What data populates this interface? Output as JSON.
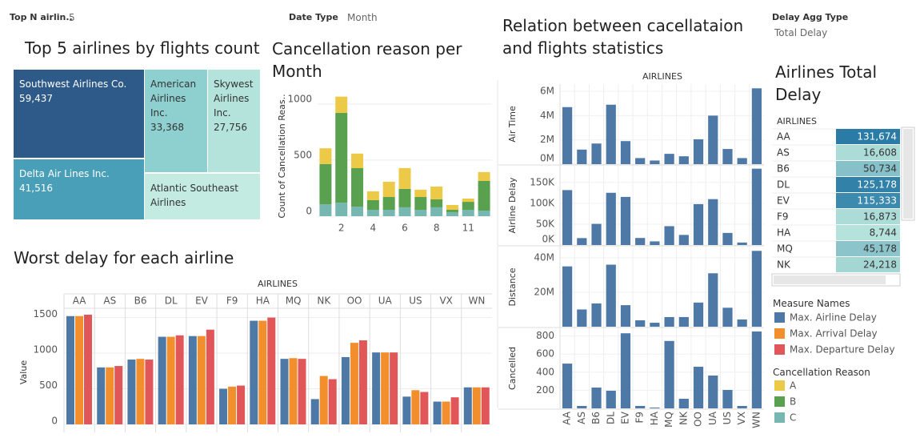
{
  "controls": [
    {
      "label": "Top N airlin..",
      "value": "5"
    },
    {
      "label": "Date Type",
      "value": "Month"
    },
    {
      "label": "Delay Agg Type",
      "value": "Total Delay"
    }
  ],
  "chart_data": [
    {
      "type": "treemap",
      "title": "Top 5 airlines by flights count",
      "categories": [
        "Southwest Airlines Co.",
        "Delta Air Lines Inc.",
        "American Airlines Inc.",
        "Skywest Airlines Inc.",
        "Atlantic Southeast Airlines"
      ],
      "values": [
        59437,
        41516,
        33368,
        27756,
        27400
      ],
      "value_labels": [
        "59,437",
        "41,516",
        "33,368",
        "27,756",
        null
      ],
      "colors": [
        "#2d5a88",
        "#4a9fb8",
        "#8ecfd0",
        "#b3e3da",
        "#c4ebe2"
      ]
    },
    {
      "type": "stacked_bar",
      "title": "Cancellation reason per Month",
      "y_label": "Count of Cancellation Reas..",
      "categories": [
        null,
        "2",
        null,
        "4",
        null,
        "6",
        null,
        "8",
        null,
        "11",
        null
      ],
      "series": [
        {
          "name": "C",
          "color": "#76b7b2",
          "values": [
            105,
            120,
            85,
            57,
            57,
            79,
            57,
            79,
            36,
            57,
            50
          ]
        },
        {
          "name": "B",
          "color": "#59a14f",
          "values": [
            360,
            800,
            343,
            86,
            114,
            164,
            114,
            71,
            21,
            71,
            264
          ]
        },
        {
          "name": "A",
          "color": "#edc948",
          "values": [
            140,
            145,
            130,
            78,
            136,
            186,
            65,
            114,
            43,
            29,
            79
          ]
        }
      ],
      "ylim": [
        0,
        1070
      ],
      "yticks": [
        0,
        500,
        1000
      ],
      "grid": true,
      "legend_title": "Cancellation Reason"
    },
    {
      "type": "grouped_bar",
      "title": "Worst delay for each airline",
      "x_header": "AIRLINES",
      "y_label": "Value",
      "categories": [
        "AA",
        "AS",
        "B6",
        "DL",
        "EV",
        "F9",
        "HA",
        "MQ",
        "NK",
        "OO",
        "UA",
        "US",
        "VX",
        "WN"
      ],
      "series": [
        {
          "name": "Max. Airline Delay",
          "color": "#4e79a7",
          "values": [
            1520,
            800,
            910,
            1230,
            1240,
            500,
            1455,
            920,
            355,
            945,
            1010,
            390,
            320,
            520
          ]
        },
        {
          "name": "Max. Arrival Delay",
          "color": "#f28e2b",
          "values": [
            1520,
            800,
            920,
            1230,
            1240,
            530,
            1455,
            930,
            680,
            1145,
            1010,
            480,
            320,
            520
          ]
        },
        {
          "name": "Max. Departure Delay",
          "color": "#e15759",
          "values": [
            1540,
            820,
            910,
            1250,
            1330,
            545,
            1500,
            920,
            635,
            1180,
            1010,
            455,
            380,
            520
          ]
        }
      ],
      "ylim": [
        0,
        1630
      ],
      "yticks": [
        0,
        500,
        1000,
        1500
      ],
      "grid": true,
      "legend_title": "Measure Names"
    },
    {
      "type": "bar_panels",
      "title": "Relation between cacellataion and flights statistics",
      "x_header": "AIRLINES",
      "categories": [
        "AA",
        "AS",
        "B6",
        "DL",
        "EV",
        "F9",
        "HA",
        "MQ",
        "NK",
        "OO",
        "UA",
        "US",
        "VX",
        "WN"
      ],
      "color": "#4e79a7",
      "panels": [
        {
          "y_label": "Air Time",
          "values": [
            4700000,
            1200000,
            1700000,
            4900000,
            1900000,
            500000,
            300000,
            850000,
            650000,
            2050000,
            4000000,
            1250000,
            500000,
            6250000
          ],
          "ylim": [
            0,
            6600000
          ],
          "yticks": [
            {
              "value": 0,
              "label": "0M"
            },
            {
              "value": 2000000,
              "label": "2M"
            },
            {
              "value": 4000000,
              "label": "4M"
            },
            {
              "value": 6000000,
              "label": "6M"
            }
          ]
        },
        {
          "y_label": "Airline Delay",
          "values": [
            131674,
            16608,
            50734,
            125178,
            115333,
            16873,
            8744,
            45178,
            24218,
            98000,
            110000,
            29000,
            6000,
            183000
          ],
          "ylim": [
            0,
            190000
          ],
          "yticks": [
            {
              "value": 0,
              "label": "0K"
            },
            {
              "value": 50000,
              "label": "50K"
            },
            {
              "value": 100000,
              "label": "100K"
            },
            {
              "value": 150000,
              "label": "150K"
            }
          ]
        },
        {
          "y_label": "Distance",
          "values": [
            35000000,
            10000000,
            13500000,
            36000000,
            12500000,
            3700000,
            2300000,
            5600000,
            5600000,
            14000000,
            31000000,
            11000000,
            4200000,
            44000000
          ],
          "ylim": [
            0,
            46000000
          ],
          "yticks": [
            {
              "value": 20000000,
              "label": "20M"
            },
            {
              "value": 40000000,
              "label": "40M"
            }
          ]
        },
        {
          "y_label": "Cancelled",
          "values": [
            495,
            27,
            230,
            195,
            830,
            27,
            9,
            745,
            106,
            460,
            363,
            204,
            27,
            850
          ],
          "ylim": [
            0,
            885
          ],
          "yticks": [
            200,
            400,
            600,
            800
          ]
        }
      ]
    },
    {
      "type": "table",
      "title": "Airlines Total Delay",
      "column_header": "AIRLINES",
      "categories": [
        "AA",
        "AS",
        "B6",
        "DL",
        "EV",
        "F9",
        "HA",
        "MQ",
        "NK"
      ],
      "values": [
        131674,
        16608,
        50734,
        125178,
        115333,
        16873,
        8744,
        45178,
        24218
      ],
      "value_labels": [
        "131,674",
        "16,608",
        "50,734",
        "125,178",
        "115,333",
        "16,873",
        "8,744",
        "45,178",
        "24,218"
      ],
      "color_range": [
        "#b5e3db",
        "#2a7ca6"
      ]
    }
  ]
}
